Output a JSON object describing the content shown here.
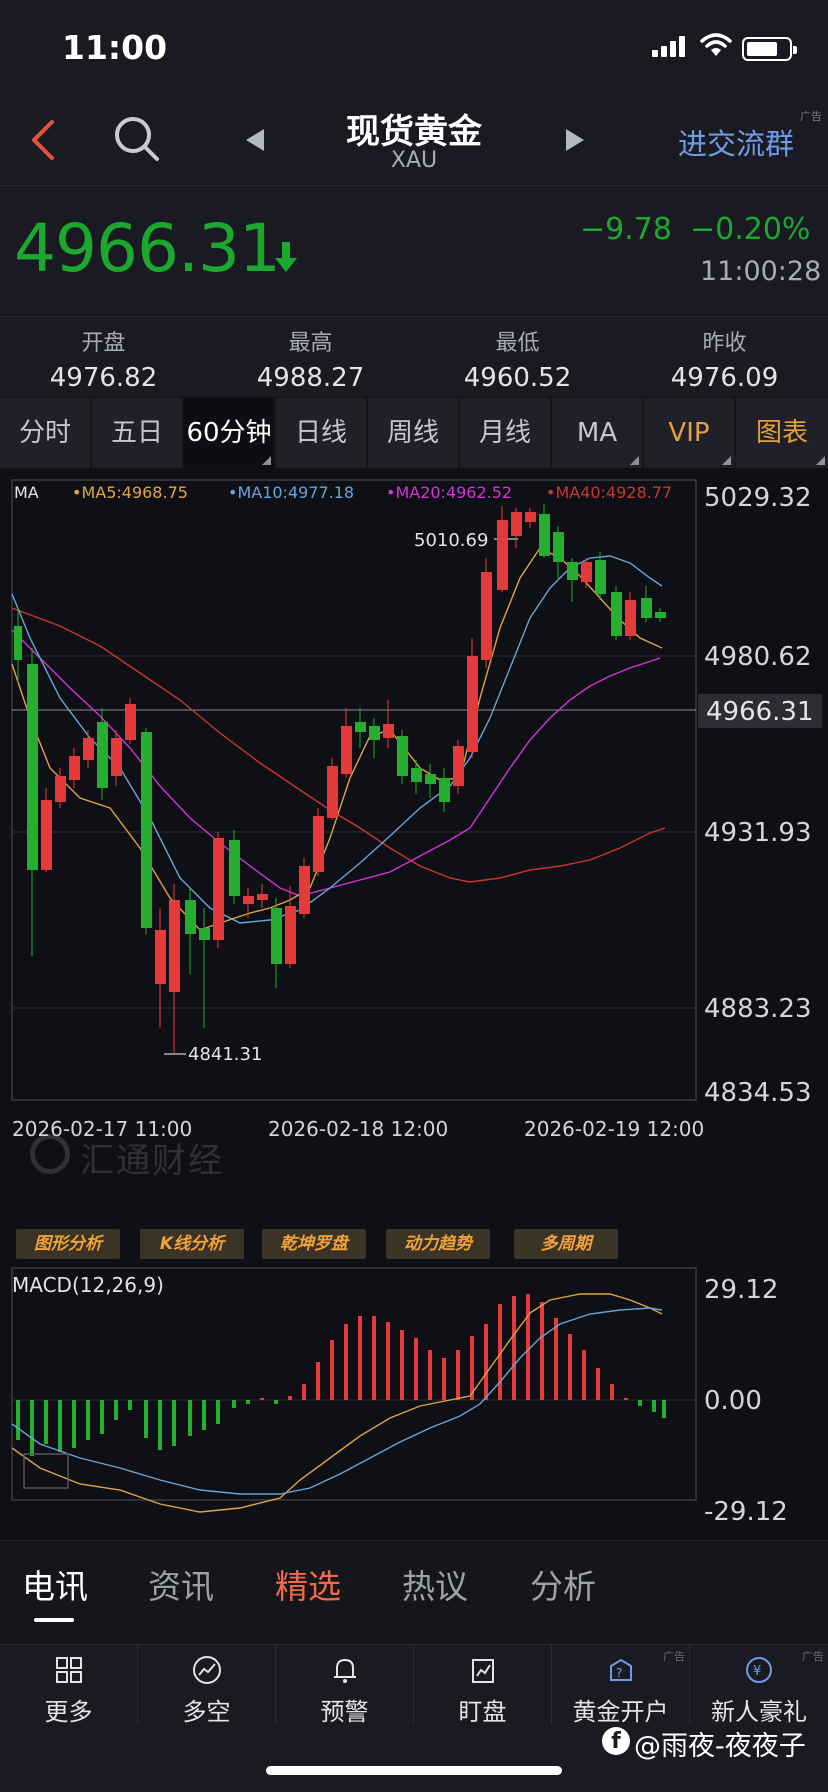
{
  "status_bar": {
    "time": "11:00"
  },
  "header": {
    "title": "现货黄金",
    "subtitle": "XAU",
    "join_group": "进交流群",
    "ad_tag": "广告"
  },
  "quote": {
    "price": "4966.31",
    "change": "−9.78",
    "change_pct": "−0.20%",
    "time": "11:00:28",
    "direction": "down",
    "color_down": "#1ca82f",
    "color_up": "#e53a3a"
  },
  "ohlc": [
    {
      "label": "开盘",
      "value": "4976.82"
    },
    {
      "label": "最高",
      "value": "4988.27"
    },
    {
      "label": "最低",
      "value": "4960.52"
    },
    {
      "label": "昨收",
      "value": "4976.09"
    }
  ],
  "period_tabs": [
    {
      "label": "分时"
    },
    {
      "label": "五日"
    },
    {
      "label": "60分钟",
      "active": true
    },
    {
      "label": "日线"
    },
    {
      "label": "周线"
    },
    {
      "label": "月线"
    },
    {
      "label": "MA"
    },
    {
      "label": "VIP"
    },
    {
      "label": "图表"
    }
  ],
  "main_chart": {
    "indicator": "MA",
    "legend": [
      {
        "text": "•MA5:4968.75",
        "color": "#e0a24a"
      },
      {
        "text": "•MA10:4977.18",
        "color": "#6aa3d8"
      },
      {
        "text": "•MA20:4962.52",
        "color": "#d235d8"
      },
      {
        "text": "•MA40:4928.77",
        "color": "#c8372f"
      }
    ],
    "y_ticks": [
      "5029.32",
      "4980.62",
      "4931.93",
      "4883.23",
      "4834.53"
    ],
    "current_price": "4966.31",
    "high_label": "5010.69",
    "low_label": "4841.31",
    "x_labels": [
      "2026-02-17 11:00",
      "2026-02-18 12:00",
      "2026-02-19 12:00"
    ],
    "watermark": "汇通财经"
  },
  "tools": [
    "图形分析",
    "K线分析",
    "乾坤罗盘",
    "动力趋势",
    "多周期"
  ],
  "macd": {
    "title": "MACD(12,26,9)",
    "y_ticks": [
      "29.12",
      "0.00",
      "-29.12"
    ]
  },
  "news_tabs": [
    {
      "label": "电讯",
      "state": "on"
    },
    {
      "label": "资讯",
      "state": ""
    },
    {
      "label": "精选",
      "state": "hot"
    },
    {
      "label": "热议",
      "state": ""
    },
    {
      "label": "分析",
      "state": ""
    }
  ],
  "bottom_nav": [
    {
      "label": "更多",
      "icon": "grid-icon"
    },
    {
      "label": "多空",
      "icon": "trend-icon"
    },
    {
      "label": "预警",
      "icon": "bell-icon"
    },
    {
      "label": "盯盘",
      "icon": "watch-chart-icon"
    },
    {
      "label": "黄金开户",
      "icon": "gold-account-icon",
      "ad": "广告"
    },
    {
      "label": "新人豪礼",
      "icon": "gift-icon",
      "ad": "广告"
    }
  ],
  "credit": "@雨夜-夜夜子"
}
